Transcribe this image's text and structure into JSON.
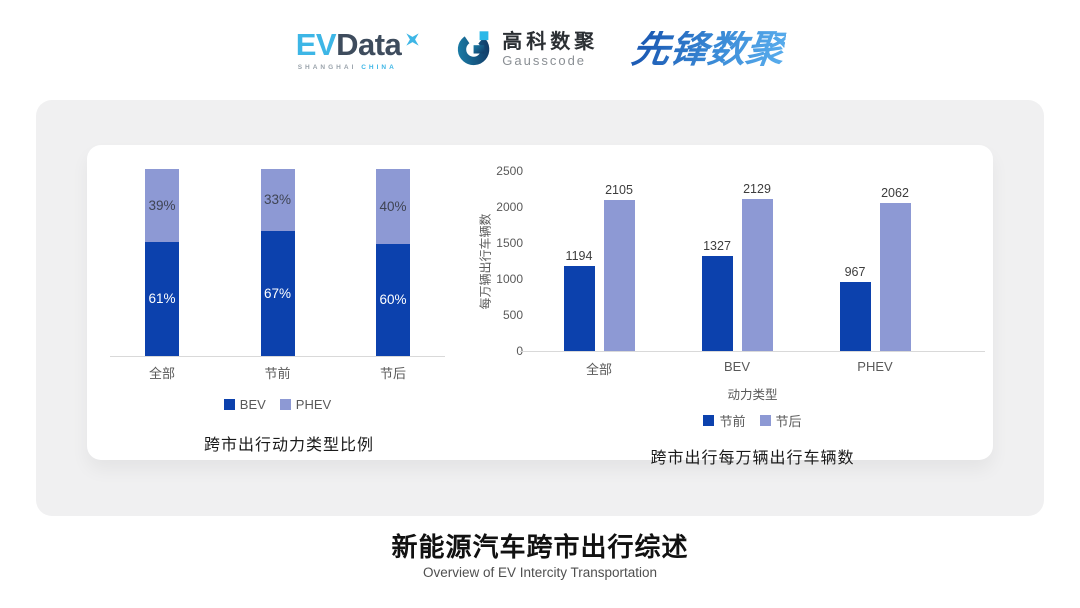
{
  "header": {
    "logos": {
      "evdata": {
        "text_ev": "EV",
        "text_data": "Data",
        "tagline_left": "SHANGHAI",
        "tagline_right": "CHINA",
        "icon": "sparkle-x-icon",
        "color_cyan": "#3db6e6",
        "color_dark": "#3e4c5d"
      },
      "gausscode": {
        "name_cn": "高科数聚",
        "name_en": "Gausscode",
        "icon": "g-ring-icon",
        "color_teal": "#14537e",
        "color_cyan": "#2ab8e8"
      },
      "xianfeng": {
        "text": "先锋数聚",
        "color": "#2e7fd0"
      }
    }
  },
  "chart_data": [
    {
      "type": "bar",
      "variant": "stacked-100-percent",
      "title": "跨市出行动力类型比例",
      "categories": [
        "全部",
        "节前",
        "节后"
      ],
      "ymax": 100,
      "units": "%",
      "grid": false,
      "legend_position": "bottom",
      "series": [
        {
          "name": "BEV",
          "color": "#0c41ad",
          "values": [
            61,
            67,
            60
          ],
          "labels": [
            "61%",
            "67%",
            "60%"
          ]
        },
        {
          "name": "PHEV",
          "color": "#8d99d4",
          "values": [
            39,
            33,
            40
          ],
          "labels": [
            "39%",
            "33%",
            "40%"
          ]
        }
      ]
    },
    {
      "type": "bar",
      "variant": "grouped",
      "title": "跨市出行每万辆出行车辆数",
      "xlabel": "动力类型",
      "ylabel": "每万辆出行车辆数",
      "categories": [
        "全部",
        "BEV",
        "PHEV"
      ],
      "ymax": 2500,
      "yticks": [
        0,
        500,
        1000,
        1500,
        2000,
        2500
      ],
      "grid": false,
      "legend_position": "bottom",
      "series": [
        {
          "name": "节前",
          "color": "#0c41ad",
          "values": [
            1194,
            1327,
            967
          ]
        },
        {
          "name": "节后",
          "color": "#8d99d4",
          "values": [
            2105,
            2129,
            2062
          ]
        }
      ]
    }
  ],
  "footer": {
    "title": "新能源汽车跨市出行综述",
    "subtitle": "Overview of EV Intercity Transportation"
  }
}
